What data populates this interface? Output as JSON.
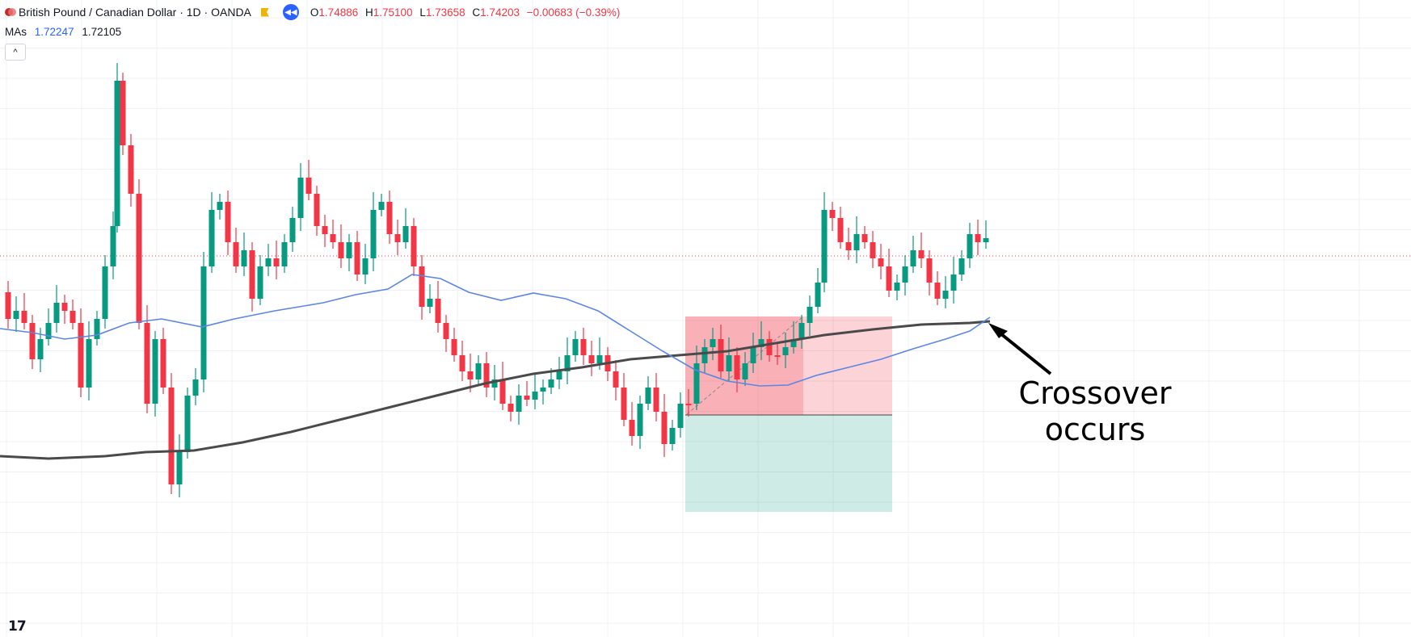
{
  "header": {
    "symbol_title": "British Pound / Canadian Dollar · 1D · OANDA",
    "ohlc": [
      {
        "key": "O",
        "value": "1.74886"
      },
      {
        "key": "H",
        "value": "1.75100"
      },
      {
        "key": "L",
        "value": "1.73658"
      },
      {
        "key": "C",
        "value": "1.74203"
      },
      {
        "key": "",
        "value": "−0.00683 (−0.39%)"
      }
    ],
    "icons": [
      "currency-pair-icon",
      "flag-icon",
      "rewind-icon"
    ]
  },
  "indicator": {
    "name": "MAs",
    "value_fast": "1.72247",
    "value_slow": "1.72105"
  },
  "collapse_glyph": "^",
  "logo_text": "17",
  "annotation": {
    "line1": "Crossover",
    "line2": "occurs"
  },
  "colors": {
    "up": "#089981",
    "down": "#f23645",
    "ma_fast": "#5b86e5",
    "ma_slow": "#4a4a4a",
    "grid": "#eef0f3",
    "risk_zone": "rgba(242,54,69,0.22)",
    "reward_zone": "rgba(8,153,129,0.20)",
    "last_price_line": "#f23645"
  }
}
